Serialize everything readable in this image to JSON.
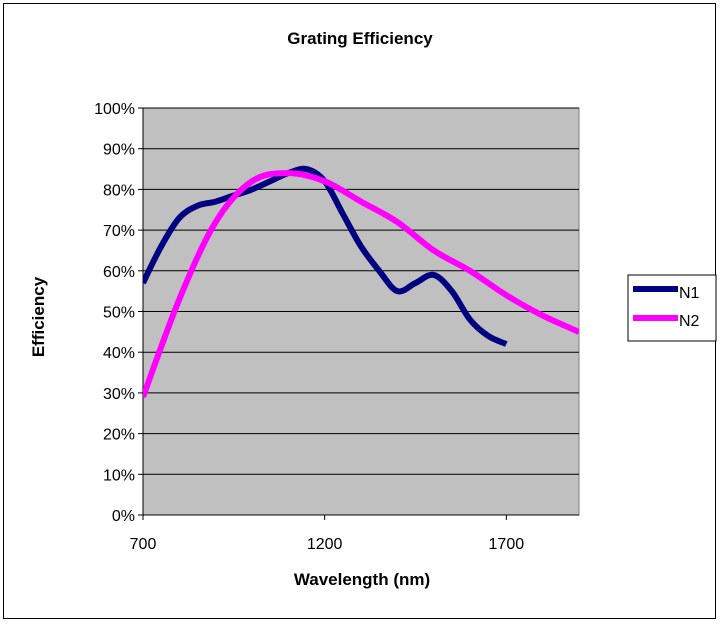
{
  "chart_data": {
    "type": "line",
    "title": "Grating Efficiency",
    "xlabel": "Wavelength (nm)",
    "ylabel": "Efficiency",
    "xlim": [
      700,
      1900
    ],
    "ylim": [
      0,
      1
    ],
    "x_ticks": [
      700,
      1200,
      1700
    ],
    "x_tick_labels": [
      "700",
      "1200",
      "1700"
    ],
    "y_ticks": [
      0,
      0.1,
      0.2,
      0.3,
      0.4,
      0.5,
      0.6,
      0.7,
      0.8,
      0.9,
      1.0
    ],
    "y_tick_labels": [
      "0%",
      "10%",
      "20%",
      "30%",
      "40%",
      "50%",
      "60%",
      "70%",
      "80%",
      "90%",
      "100%"
    ],
    "grid": true,
    "legend_position": "right",
    "plot_background": "#c0c0c0",
    "series": [
      {
        "name": "N1",
        "color": "#000080",
        "x": [
          700,
          750,
          800,
          850,
          900,
          950,
          1000,
          1050,
          1100,
          1150,
          1200,
          1250,
          1300,
          1350,
          1400,
          1450,
          1500,
          1550,
          1600,
          1650,
          1700
        ],
        "y": [
          0.57,
          0.66,
          0.73,
          0.76,
          0.77,
          0.785,
          0.8,
          0.82,
          0.84,
          0.85,
          0.82,
          0.74,
          0.66,
          0.6,
          0.55,
          0.57,
          0.59,
          0.55,
          0.48,
          0.44,
          0.42
        ]
      },
      {
        "name": "N2",
        "color": "#ff00ff",
        "x": [
          700,
          800,
          900,
          1000,
          1100,
          1200,
          1300,
          1400,
          1500,
          1600,
          1700,
          1800,
          1900
        ],
        "y": [
          0.29,
          0.53,
          0.72,
          0.82,
          0.84,
          0.82,
          0.77,
          0.72,
          0.65,
          0.6,
          0.54,
          0.49,
          0.45
        ]
      }
    ]
  }
}
